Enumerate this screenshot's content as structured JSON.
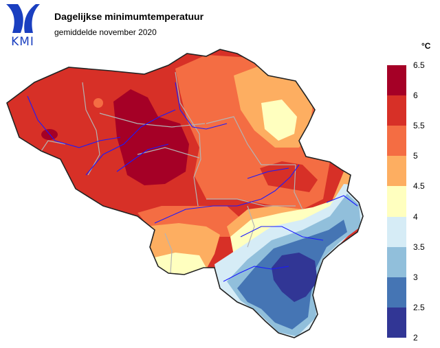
{
  "header": {
    "logo_text": "KMI",
    "title": "Dagelijkse minimumtemperatuur",
    "subtitle": "gemiddelde november 2020"
  },
  "legend": {
    "unit": "°C",
    "ticks": [
      "6.5",
      "6",
      "5.5",
      "5",
      "4.5",
      "4",
      "3.5",
      "3",
      "2.5",
      "2"
    ],
    "classes": [
      {
        "from": 6.0,
        "to": 6.5,
        "color": "#a50026"
      },
      {
        "from": 5.5,
        "to": 6.0,
        "color": "#d73027"
      },
      {
        "from": 5.0,
        "to": 5.5,
        "color": "#f46d43"
      },
      {
        "from": 4.5,
        "to": 5.0,
        "color": "#fdae61"
      },
      {
        "from": 4.0,
        "to": 4.5,
        "color": "#ffffbf"
      },
      {
        "from": 3.5,
        "to": 4.0,
        "color": "#d6ecf6"
      },
      {
        "from": 3.0,
        "to": 3.5,
        "color": "#91bfdb"
      },
      {
        "from": 2.5,
        "to": 3.0,
        "color": "#4575b4"
      },
      {
        "from": 2.0,
        "to": 2.5,
        "color": "#313695"
      }
    ]
  },
  "map": {
    "country": "België",
    "river_color": "#1a1aff",
    "province_border_color": "#b4b4b4",
    "country_border_color": "#222222"
  }
}
